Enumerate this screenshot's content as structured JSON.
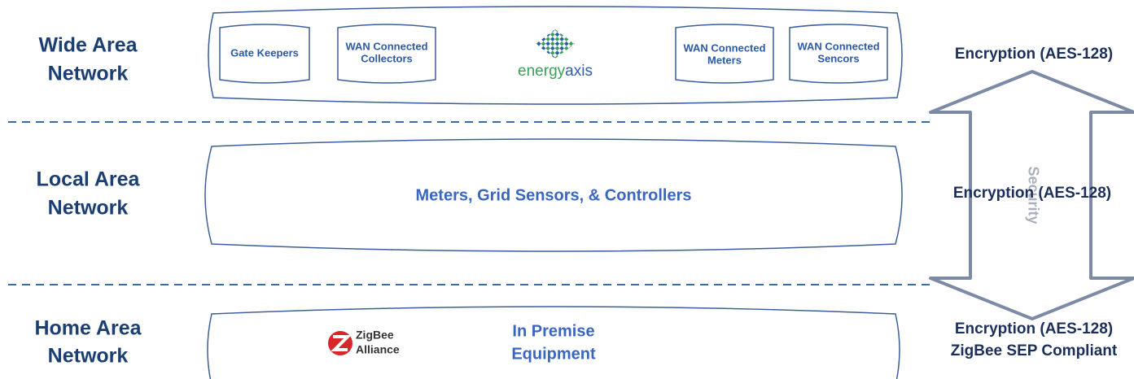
{
  "layers": [
    {
      "label": [
        "Wide Area",
        "Network"
      ],
      "security": [
        "Encryption (AES-128)"
      ]
    },
    {
      "label": [
        "Local Area",
        "Network"
      ],
      "security": [
        "Encryption (AES-128)"
      ]
    },
    {
      "label": [
        "Home Area",
        "Network"
      ],
      "security": [
        "Encryption (AES-128)",
        "ZigBee SEP Compliant"
      ]
    }
  ],
  "wan_nodes": [
    {
      "label": [
        "Gate Keepers"
      ]
    },
    {
      "label": [
        "WAN Connected",
        "Collectors"
      ]
    },
    {
      "label": [
        "WAN Connected",
        "Meters"
      ]
    },
    {
      "label": [
        "WAN Connected",
        "Sencors"
      ]
    }
  ],
  "wan_logo": [
    "energy",
    "axis"
  ],
  "lan_box": "Meters, Grid Sensors, & Controllers",
  "han_logo": [
    "ZigBee",
    "Alliance"
  ],
  "han_box": [
    "In Premise",
    "Equipment"
  ],
  "security_arrow": "Security"
}
